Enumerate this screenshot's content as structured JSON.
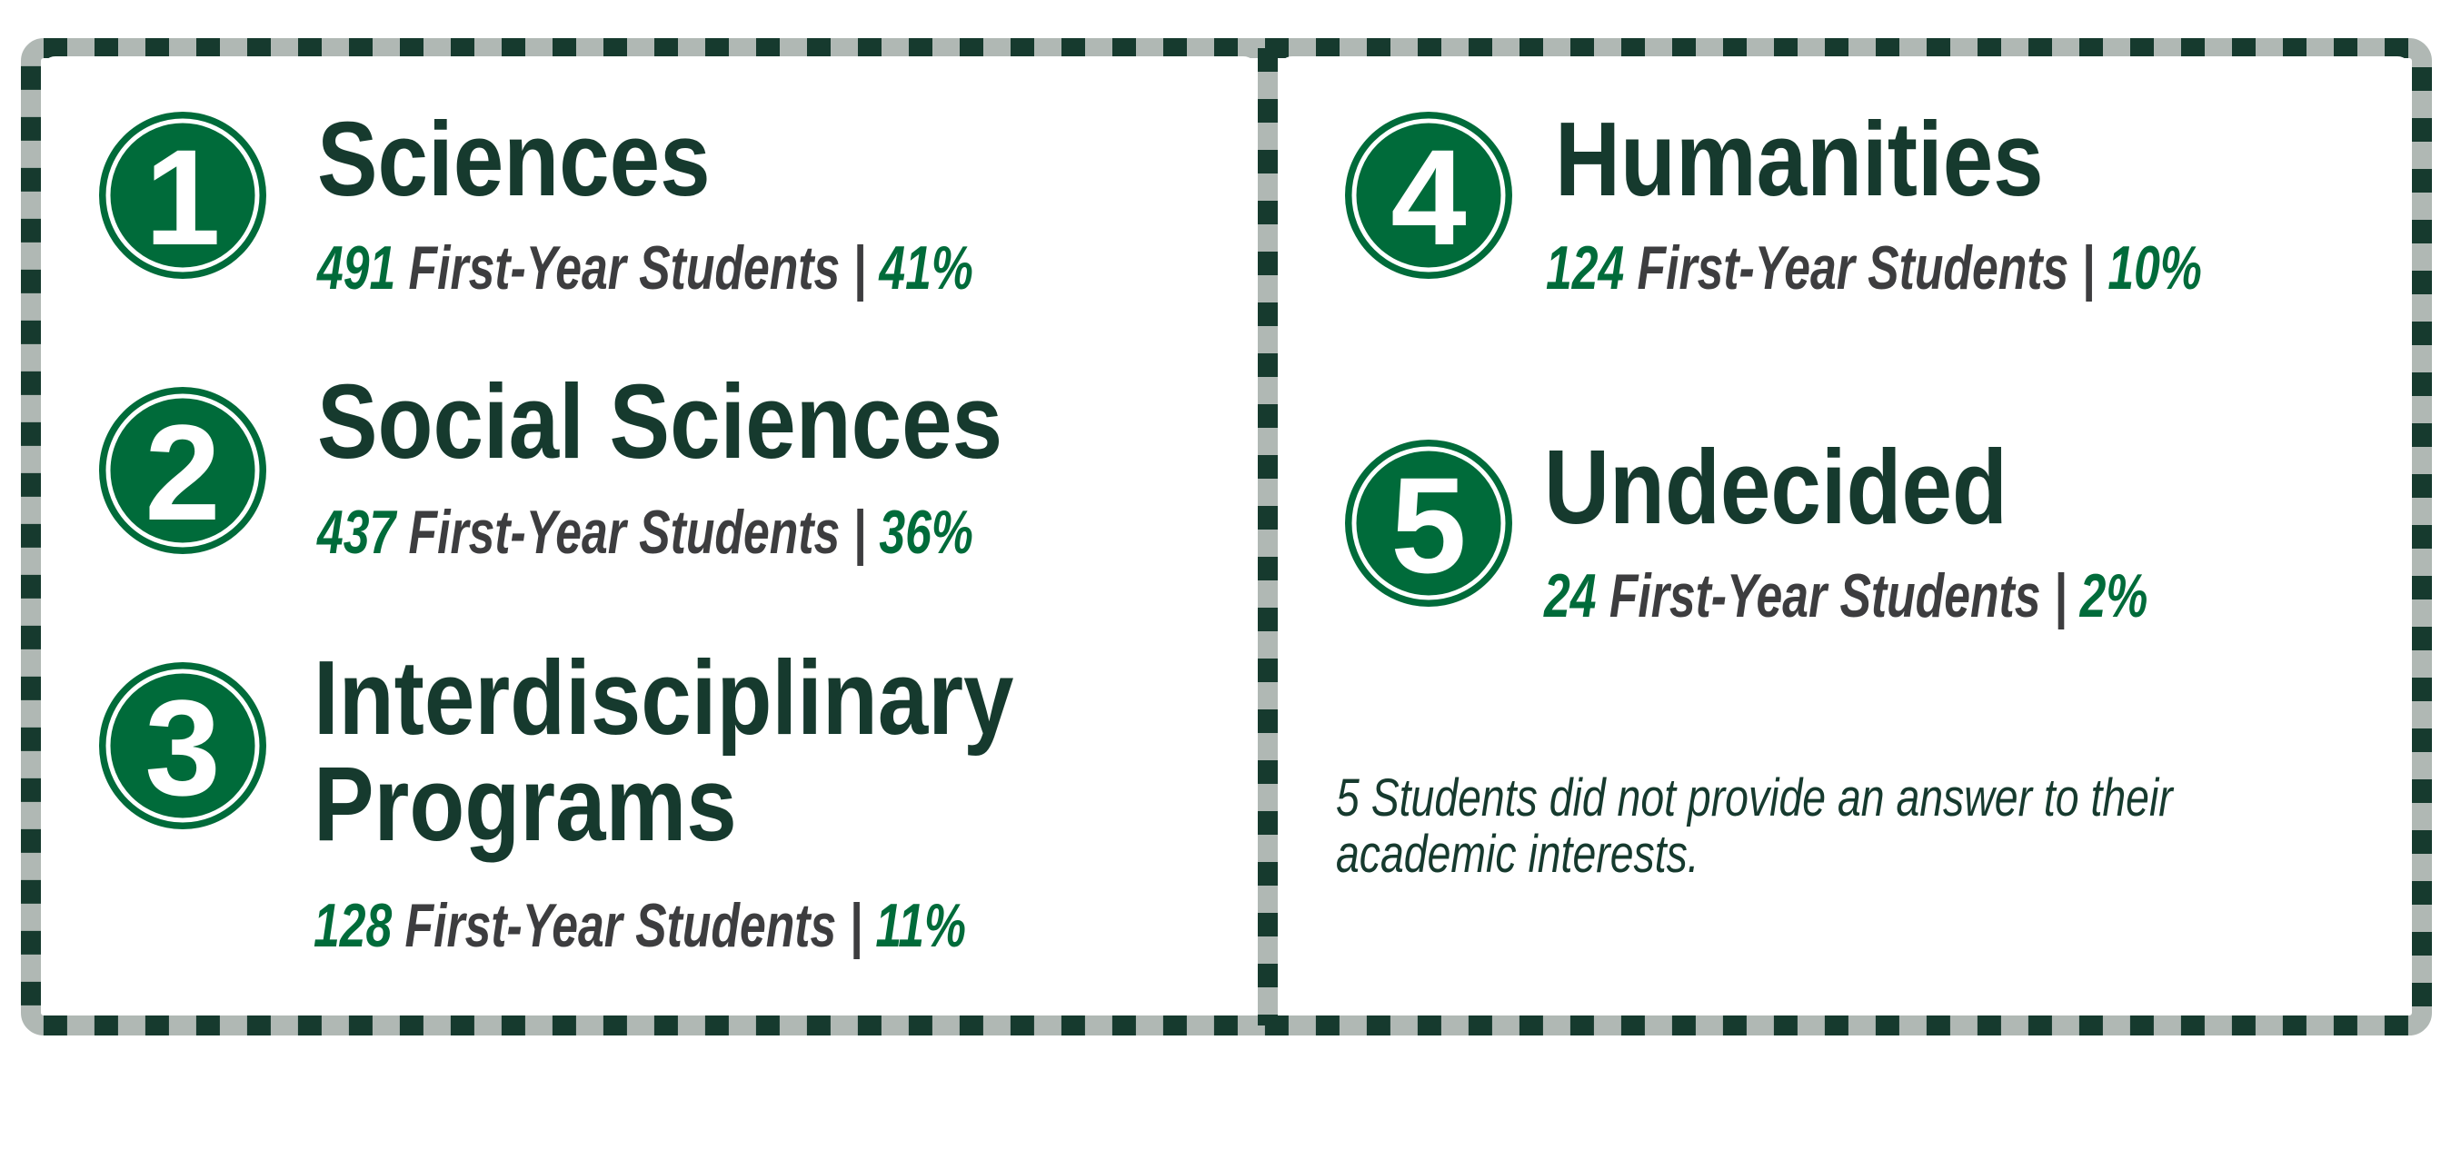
{
  "items": [
    {
      "number": "1",
      "title": [
        "Sciences"
      ],
      "count": 491,
      "label": "First-Year Students |",
      "percent": "41%"
    },
    {
      "number": "2",
      "title": [
        "Social Sciences"
      ],
      "count": 437,
      "label": "First-Year Students |",
      "percent": "36%"
    },
    {
      "number": "3",
      "title": [
        "Interdisciplinary",
        "Programs"
      ],
      "count": 128,
      "label": "First-Year Students |",
      "percent": "11%"
    },
    {
      "number": "4",
      "title": [
        "Humanities"
      ],
      "count": 124,
      "label": "First-Year Students |",
      "percent": "10%"
    },
    {
      "number": "5",
      "title": [
        "Undecided"
      ],
      "count": 24,
      "label": "First-Year Students |",
      "percent": "2%"
    }
  ],
  "note": [
    "5 Students did not provide an answer to their",
    "academic interests."
  ]
}
